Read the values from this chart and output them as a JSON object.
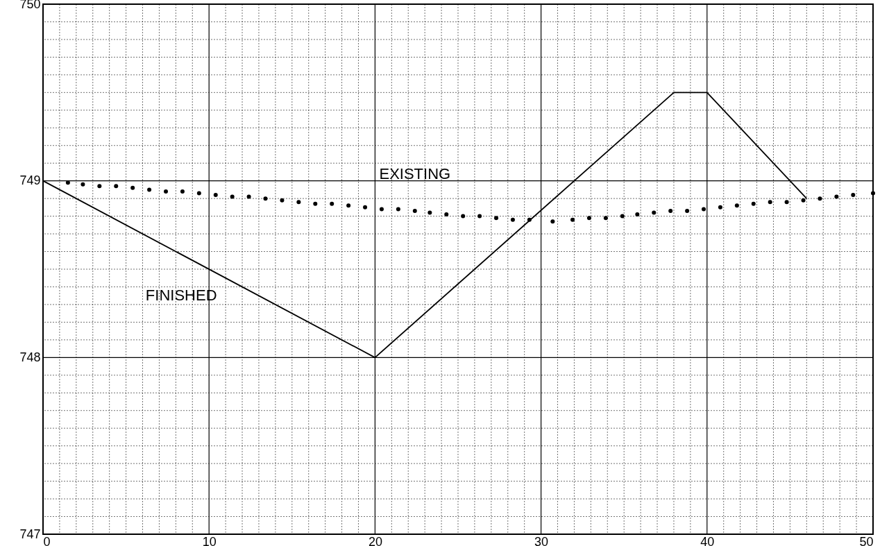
{
  "chart_data": {
    "type": "line",
    "xlim": [
      0,
      50
    ],
    "ylim": [
      747,
      750
    ],
    "xticks": [
      0,
      {
        "value": 1,
        "label": null
      },
      {
        "value": 2,
        "label": null
      },
      {
        "value": 3,
        "label": null
      },
      {
        "value": 4,
        "label": null
      },
      {
        "value": 5,
        "label": null
      },
      {
        "value": 6,
        "label": null
      },
      {
        "value": 7,
        "label": null
      },
      {
        "value": 8,
        "label": null
      },
      {
        "value": 9,
        "label": null
      },
      10,
      {
        "value": 11,
        "label": null
      },
      {
        "value": 12,
        "label": null
      },
      {
        "value": 13,
        "label": null
      },
      {
        "value": 14,
        "label": null
      },
      {
        "value": 15,
        "label": null
      },
      {
        "value": 16,
        "label": null
      },
      {
        "value": 17,
        "label": null
      },
      {
        "value": 18,
        "label": null
      },
      {
        "value": 19,
        "label": null
      },
      20,
      {
        "value": 21,
        "label": null
      },
      {
        "value": 22,
        "label": null
      },
      {
        "value": 23,
        "label": null
      },
      {
        "value": 24,
        "label": null
      },
      {
        "value": 25,
        "label": null
      },
      {
        "value": 26,
        "label": null
      },
      {
        "value": 27,
        "label": null
      },
      {
        "value": 28,
        "label": null
      },
      {
        "value": 29,
        "label": null
      },
      30,
      {
        "value": 31,
        "label": null
      },
      {
        "value": 32,
        "label": null
      },
      {
        "value": 33,
        "label": null
      },
      {
        "value": 34,
        "label": null
      },
      {
        "value": 35,
        "label": null
      },
      {
        "value": 36,
        "label": null
      },
      {
        "value": 37,
        "label": null
      },
      {
        "value": 38,
        "label": null
      },
      {
        "value": 39,
        "label": null
      },
      40,
      {
        "value": 41,
        "label": null
      },
      {
        "value": 42,
        "label": null
      },
      {
        "value": 43,
        "label": null
      },
      {
        "value": 44,
        "label": null
      },
      {
        "value": 45,
        "label": null
      },
      {
        "value": 46,
        "label": null
      },
      {
        "value": 47,
        "label": null
      },
      {
        "value": 48,
        "label": null
      },
      {
        "value": 49,
        "label": null
      },
      50
    ],
    "yticks": [
      747,
      {
        "value": 747.1,
        "label": null
      },
      {
        "value": 747.2,
        "label": null
      },
      {
        "value": 747.3,
        "label": null
      },
      {
        "value": 747.4,
        "label": null
      },
      {
        "value": 747.5,
        "label": null
      },
      {
        "value": 747.6,
        "label": null
      },
      {
        "value": 747.7,
        "label": null
      },
      {
        "value": 747.8,
        "label": null
      },
      {
        "value": 747.9,
        "label": null
      },
      748,
      {
        "value": 748.1,
        "label": null
      },
      {
        "value": 748.2,
        "label": null
      },
      {
        "value": 748.3,
        "label": null
      },
      {
        "value": 748.4,
        "label": null
      },
      {
        "value": 748.5,
        "label": null
      },
      {
        "value": 748.6,
        "label": null
      },
      {
        "value": 748.7,
        "label": null
      },
      {
        "value": 748.8,
        "label": null
      },
      {
        "value": 748.9,
        "label": null
      },
      749,
      {
        "value": 749.1,
        "label": null
      },
      {
        "value": 749.2,
        "label": null
      },
      {
        "value": 749.3,
        "label": null
      },
      {
        "value": 749.4,
        "label": null
      },
      {
        "value": 749.5,
        "label": null
      },
      {
        "value": 749.6,
        "label": null
      },
      {
        "value": 749.7,
        "label": null
      },
      {
        "value": 749.8,
        "label": null
      },
      {
        "value": 749.9,
        "label": null
      },
      750
    ],
    "grid": true,
    "series": [
      {
        "name": "FINISHED",
        "color": "#000000",
        "line_style": "solid",
        "marker": "none",
        "x": [
          0,
          20,
          38,
          40,
          46
        ],
        "values": [
          749,
          748,
          749.5,
          749.5,
          748.9
        ]
      },
      {
        "name": "EXISTING",
        "type": "scatter",
        "color": "#000000",
        "marker": "circle",
        "x": [
          1.5,
          2.4,
          3.4,
          4.4,
          5.4,
          6.4,
          7.4,
          8.4,
          9.4,
          10.4,
          11.4,
          12.4,
          13.4,
          14.4,
          15.4,
          16.4,
          17.4,
          18.4,
          19.4,
          20.4,
          21.4,
          22.4,
          23.3,
          24.3,
          25.3,
          26.3,
          27.3,
          28.3,
          29.3,
          30.7,
          31.9,
          32.9,
          33.9,
          34.9,
          35.8,
          36.8,
          37.8,
          38.8,
          39.8,
          40.8,
          41.8,
          42.8,
          43.8,
          44.8,
          45.8,
          46.8,
          47.8,
          48.8,
          50
        ],
        "values": [
          748.99,
          748.98,
          748.97,
          748.97,
          748.96,
          748.95,
          748.94,
          748.94,
          748.93,
          748.92,
          748.91,
          748.91,
          748.9,
          748.89,
          748.88,
          748.87,
          748.87,
          748.86,
          748.85,
          748.84,
          748.84,
          748.83,
          748.82,
          748.81,
          748.8,
          748.8,
          748.79,
          748.78,
          748.78,
          748.77,
          748.78,
          748.79,
          748.79,
          748.8,
          748.81,
          748.82,
          748.83,
          748.83,
          748.84,
          748.85,
          748.86,
          748.87,
          748.88,
          748.88,
          748.89,
          748.9,
          748.91,
          748.92,
          748.93
        ]
      }
    ]
  }
}
